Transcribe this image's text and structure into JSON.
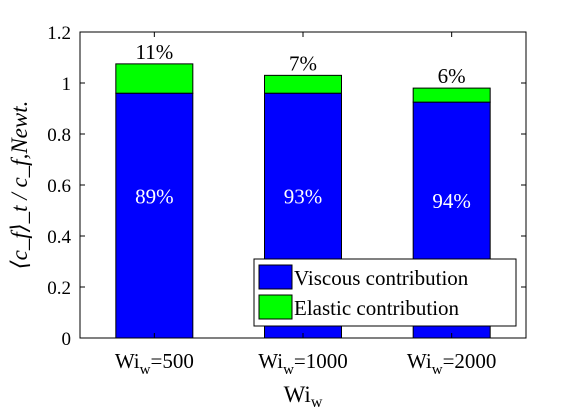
{
  "chart_data": {
    "type": "bar",
    "stacked": true,
    "categories": [
      "=500",
      "=1000",
      "=2000"
    ],
    "category_prefix": "Wi",
    "category_sub": "w",
    "series": [
      {
        "name": "Viscous contribution",
        "color": "#0000ff",
        "values": [
          0.96,
          0.96,
          0.925
        ],
        "labels": [
          "89%",
          "93%",
          "94%"
        ]
      },
      {
        "name": "Elastic contribution",
        "color": "#00ff00",
        "values": [
          0.115,
          0.07,
          0.055
        ],
        "labels": [
          "11%",
          "7%",
          "6%"
        ]
      }
    ],
    "ylim": [
      0,
      1.2
    ],
    "yticks": [
      0,
      0.2,
      0.4,
      0.6,
      0.8,
      1,
      1.2
    ],
    "ytick_labels": [
      "0",
      "0.2",
      "0.4",
      "0.6",
      "0.8",
      "1",
      "1.2"
    ],
    "xlabel": "Wi",
    "xlabel_sub": "w",
    "ylabel": "⟨c_f⟩_t / c_f,Newt.",
    "grid": false,
    "legend_position": "bottom-right"
  }
}
